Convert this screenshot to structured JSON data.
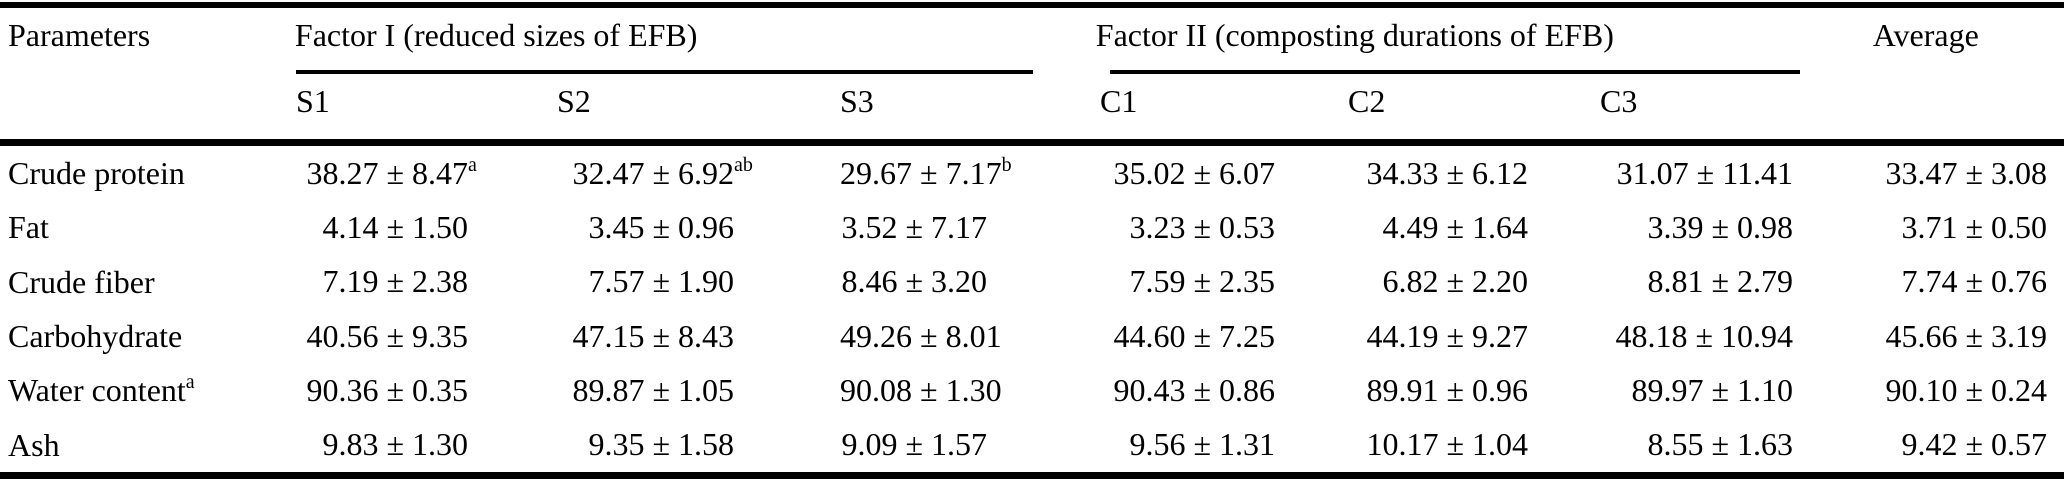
{
  "table": {
    "header": {
      "parameters": "Parameters",
      "factor1": "Factor I (reduced sizes of EFB)",
      "factor2": "Factor II (composting durations of EFB)",
      "average": "Average",
      "sub": [
        "S1",
        "S2",
        "S3",
        "C1",
        "C2",
        "C3"
      ]
    },
    "rows": [
      {
        "param": "Crude protein",
        "param_sup": "",
        "cells": [
          {
            "v": "38.27 ± 8.47",
            "s": "a"
          },
          {
            "v": "32.47 ± 6.92",
            "s": "ab"
          },
          {
            "v": "29.67 ± 7.17",
            "s": "b"
          },
          {
            "v": "35.02 ± 6.07",
            "s": ""
          },
          {
            "v": "34.33 ± 6.12",
            "s": ""
          },
          {
            "v": "31.07 ± 11.41",
            "s": ""
          },
          {
            "v": "33.47 ± 3.08",
            "s": ""
          }
        ]
      },
      {
        "param": "Fat",
        "param_sup": "",
        "cells": [
          {
            "v": "4.14 ± 1.50",
            "s": ""
          },
          {
            "v": "3.45 ± 0.96",
            "s": ""
          },
          {
            "v": "3.52 ± 7.17",
            "s": ""
          },
          {
            "v": "3.23 ± 0.53",
            "s": ""
          },
          {
            "v": "4.49 ± 1.64",
            "s": ""
          },
          {
            "v": "3.39 ± 0.98",
            "s": ""
          },
          {
            "v": "3.71 ± 0.50",
            "s": ""
          }
        ]
      },
      {
        "param": "Crude fiber",
        "param_sup": "",
        "cells": [
          {
            "v": "7.19 ± 2.38",
            "s": ""
          },
          {
            "v": "7.57 ± 1.90",
            "s": ""
          },
          {
            "v": "8.46 ± 3.20",
            "s": ""
          },
          {
            "v": "7.59 ± 2.35",
            "s": ""
          },
          {
            "v": "6.82 ± 2.20",
            "s": ""
          },
          {
            "v": "8.81 ± 2.79",
            "s": ""
          },
          {
            "v": "7.74 ± 0.76",
            "s": ""
          }
        ]
      },
      {
        "param": "Carbohydrate",
        "param_sup": "",
        "cells": [
          {
            "v": "40.56 ± 9.35",
            "s": ""
          },
          {
            "v": "47.15 ± 8.43",
            "s": ""
          },
          {
            "v": "49.26 ± 8.01",
            "s": ""
          },
          {
            "v": "44.60 ± 7.25",
            "s": ""
          },
          {
            "v": "44.19 ± 9.27",
            "s": ""
          },
          {
            "v": "48.18 ± 10.94",
            "s": ""
          },
          {
            "v": "45.66 ± 3.19",
            "s": ""
          }
        ]
      },
      {
        "param": "Water content",
        "param_sup": "a",
        "cells": [
          {
            "v": "90.36 ± 0.35",
            "s": ""
          },
          {
            "v": "89.87 ± 1.05",
            "s": ""
          },
          {
            "v": "90.08 ± 1.30",
            "s": ""
          },
          {
            "v": "90.43 ± 0.86",
            "s": ""
          },
          {
            "v": "89.91 ± 0.96",
            "s": ""
          },
          {
            "v": "89.97 ± 1.10",
            "s": ""
          },
          {
            "v": "90.10 ± 0.24",
            "s": ""
          }
        ]
      },
      {
        "param": "Ash",
        "param_sup": "",
        "cells": [
          {
            "v": "9.83 ± 1.30",
            "s": ""
          },
          {
            "v": "9.35 ± 1.58",
            "s": ""
          },
          {
            "v": "9.09 ± 1.57",
            "s": ""
          },
          {
            "v": "9.56 ± 1.31",
            "s": ""
          },
          {
            "v": "10.17 ± 1.04",
            "s": ""
          },
          {
            "v": "8.55 ± 1.63",
            "s": ""
          },
          {
            "v": "9.42 ± 0.57",
            "s": ""
          }
        ]
      }
    ]
  }
}
